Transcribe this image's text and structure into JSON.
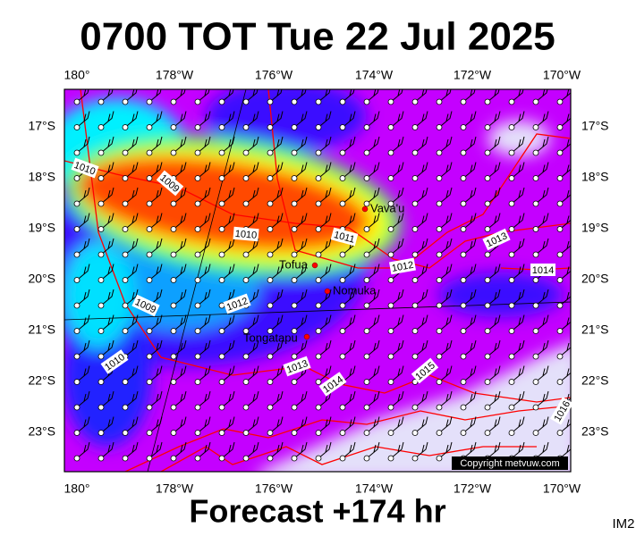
{
  "header": {
    "title": "0700 TOT Tue 22 Jul 2025"
  },
  "footer": {
    "forecast": "Forecast +174 hr",
    "image_id": "IM2",
    "copyright": "Copyright metvuw.com"
  },
  "map": {
    "longitude_labels": [
      "180°",
      "178°W",
      "176°W",
      "174°W",
      "172°W",
      "170°W"
    ],
    "latitude_labels": [
      "17°S",
      "18°S",
      "19°S",
      "20°S",
      "21°S",
      "22°S",
      "23°S"
    ],
    "places": [
      "Vava'u",
      "Tofua",
      "Nomuka",
      "Tongatapu"
    ],
    "isobar_labels": [
      "1010",
      "1009",
      "1010",
      "1011",
      "1012",
      "1013",
      "1014",
      "1009",
      "1012",
      "1010",
      "1013",
      "1014",
      "1015",
      "1016"
    ]
  }
}
